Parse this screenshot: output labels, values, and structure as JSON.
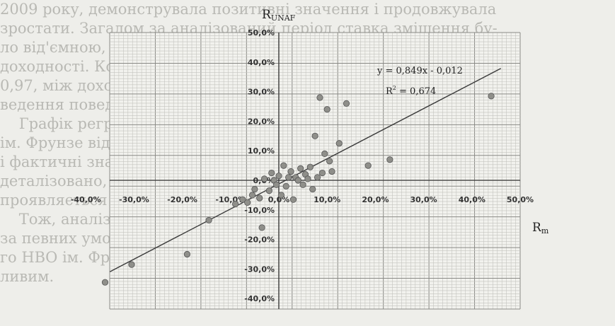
{
  "page_text": [
    "2009 року, демонструвала позитивні значення і продовжувала",
    "зростати. Загалом за аналізований період ставка зміщення бу-",
    "ло від'ємною, хоча в окремі роки були додатні значення",
    "доходності. Коефіцієнт кореляції становив 0,82, що відповідає",
    "0,97, між доходністю ринку та фонду, отже коефіцієнт прогноз-",
    "ведення поведінки фонду досить високий (див. рисунок).",
    "    Графік регресійної залежності доходності Сумського НВО",
    "ім. Фрунзе від ринку та лінію тренду наведено на рисунку.",
    "і фактичні значення розподілені навколо лінії тренду менш",
    "деталізовано, ніж у попередніх фондів; ця закономірність",
    "проявляється протягом усього періоду, для кожної компанії.",
    "    Тож, аналізуючи значення бета, можна використовувати",
    "за певних умов результати для оцінювання акцій Сумсько-",
    "го НВО ім. Фрунзе на фондовому ринку, що не є немож-",
    "ливим."
  ],
  "chart_data": {
    "type": "scatter",
    "title": "",
    "ylabel_main": "R",
    "ylabel_sub": "UNAF",
    "xlabel_main": "R",
    "xlabel_sub": "m",
    "xlim": [
      -40,
      50
    ],
    "ylim": [
      -40,
      50
    ],
    "x_ticks": [
      -40,
      -30,
      -20,
      -10,
      0,
      10,
      20,
      30,
      40,
      50
    ],
    "y_ticks": [
      -40,
      -30,
      -20,
      -10,
      0,
      10,
      20,
      30,
      40,
      50
    ],
    "x_tick_labels": [
      "-40,0%",
      "-30,0%",
      "-20,0%",
      "-10,0%",
      "0,0%",
      "10,0%",
      "20,0%",
      "30,0%",
      "40,0%",
      "50,0%"
    ],
    "y_tick_labels": [
      "-40,0%",
      "-30,0%",
      "-20,0%",
      "-10,0%",
      "0,0%",
      "10,0%",
      "20,0%",
      "30,0%",
      "40,0%",
      "50,0%"
    ],
    "grid": true,
    "equation": "y = 0,849x - 0,012",
    "r2_main": "R",
    "r2_sup": "2",
    "r2_rest": " = 0,674",
    "trend": {
      "slope": 0.849,
      "intercept": -0.012,
      "x_range": [
        -35,
        46
      ]
    },
    "points": [
      {
        "x": -36.0,
        "y": -34.5
      },
      {
        "x": -30.5,
        "y": -28.5
      },
      {
        "x": -19.0,
        "y": -25.0
      },
      {
        "x": -14.5,
        "y": -13.5
      },
      {
        "x": -9.0,
        "y": -8.0
      },
      {
        "x": -7.5,
        "y": -6.5
      },
      {
        "x": -6.5,
        "y": -7.5
      },
      {
        "x": -5.5,
        "y": -5.0
      },
      {
        "x": -5.0,
        "y": -3.0
      },
      {
        "x": -4.0,
        "y": -6.0
      },
      {
        "x": -3.5,
        "y": -16.0
      },
      {
        "x": -3.0,
        "y": 0.5
      },
      {
        "x": -2.0,
        "y": -3.5
      },
      {
        "x": -1.5,
        "y": 2.5
      },
      {
        "x": -1.0,
        "y": 0.0
      },
      {
        "x": -0.5,
        "y": -1.5
      },
      {
        "x": 0.0,
        "y": 1.5
      },
      {
        "x": 0.5,
        "y": -5.0
      },
      {
        "x": 1.0,
        "y": 5.0
      },
      {
        "x": 1.5,
        "y": -2.0
      },
      {
        "x": 2.0,
        "y": 1.0
      },
      {
        "x": 2.5,
        "y": 3.0
      },
      {
        "x": 3.0,
        "y": -6.5
      },
      {
        "x": 3.5,
        "y": 1.0
      },
      {
        "x": 4.0,
        "y": 0.0
      },
      {
        "x": 4.5,
        "y": 4.0
      },
      {
        "x": 5.0,
        "y": -1.5
      },
      {
        "x": 5.5,
        "y": 2.0
      },
      {
        "x": 6.0,
        "y": 0.5
      },
      {
        "x": 6.5,
        "y": 4.5
      },
      {
        "x": 7.0,
        "y": -3.0
      },
      {
        "x": 7.5,
        "y": 15.0
      },
      {
        "x": 8.0,
        "y": 1.0
      },
      {
        "x": 8.5,
        "y": 28.0
      },
      {
        "x": 9.0,
        "y": 2.5
      },
      {
        "x": 9.5,
        "y": 9.0
      },
      {
        "x": 10.0,
        "y": 24.0
      },
      {
        "x": 10.5,
        "y": 6.5
      },
      {
        "x": 11.0,
        "y": 3.0
      },
      {
        "x": 12.5,
        "y": 12.5
      },
      {
        "x": 14.0,
        "y": 26.0
      },
      {
        "x": 18.5,
        "y": 5.0
      },
      {
        "x": 23.0,
        "y": 7.0
      },
      {
        "x": 44.0,
        "y": 28.5
      }
    ]
  }
}
